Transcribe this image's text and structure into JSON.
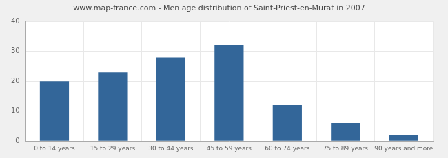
{
  "chart_data": {
    "type": "bar",
    "title": "www.map-france.com - Men age distribution of Saint-Priest-en-Murat in 2007",
    "categories": [
      "0 to 14 years",
      "15 to 29 years",
      "30 to 44 years",
      "45 to 59 years",
      "60 to 74 years",
      "75 to 89 years",
      "90 years and more"
    ],
    "values": [
      20,
      23,
      28,
      32,
      12,
      6,
      2
    ],
    "color": "#336699",
    "ylim": [
      0,
      40
    ],
    "yticks": [
      0,
      10,
      20,
      30,
      40
    ],
    "grid": true
  }
}
